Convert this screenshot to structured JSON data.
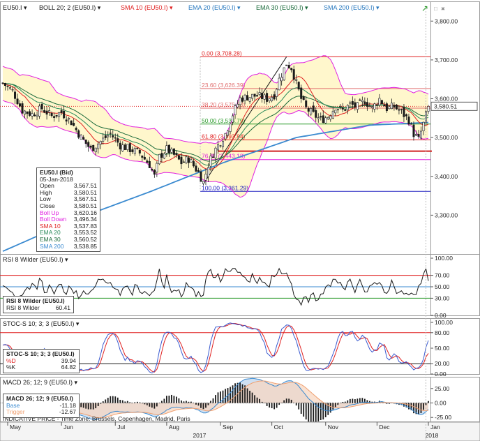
{
  "colors": {
    "candle_up": "#1a1a1a",
    "candle_down": "#1a1a1a",
    "boll": "#e01ee0",
    "boll_fill": "#fff7cc",
    "sma10": "#e02020",
    "ema20": "#2a8a5a",
    "ema30": "#1a6a3a",
    "sma200": "#3a8ad0",
    "fib_red": "#e02020",
    "fib_blue": "#2020c0",
    "rsi": "#1a1a1a",
    "stoch_d": "#e02020",
    "stoch_k": "#3a5ad0",
    "macd_base": "#3a8ad0",
    "macd_trigger": "#f0a070"
  },
  "main_header": {
    "items": [
      {
        "text": "EU50.I",
        "color": "#1a1a1a"
      },
      {
        "text": "BOLL 20; 2 (EU50.I)",
        "color": "#1a1a1a"
      },
      {
        "text": "SMA 10 (EU50.I)",
        "color": "#e02020"
      },
      {
        "text": "EMA 20 (EU50.I)",
        "color": "#2a7ac0"
      },
      {
        "text": "EMA 30 (EU50.I)",
        "color": "#1a6a3a"
      },
      {
        "text": "SMA 200 (EU50.I)",
        "color": "#2a7ac0"
      }
    ]
  },
  "rsi_header": "RSI 8 Wilder (EU50.I)",
  "stoch_header": "STOC-S 10; 3; 3 (EU50.I)",
  "macd_header": "MACD 26; 12; 9 (EU50.I)",
  "footer_text": "INDICATIVE PRICE - Time Zone: Brussels, Copenhagen, Madrid, Paris",
  "last_price_label": "3,580.51",
  "x_labels": [
    {
      "text": "May",
      "i": 2
    },
    {
      "text": "Jun",
      "i": 24
    },
    {
      "text": "Jul",
      "i": 46
    },
    {
      "text": "Aug",
      "i": 67
    },
    {
      "text": "Sep",
      "i": 89
    },
    {
      "text": "Oct",
      "i": 110
    },
    {
      "text": "Nov",
      "i": 132
    },
    {
      "text": "Dec",
      "i": 153
    },
    {
      "text": "Jan",
      "i": 174
    }
  ],
  "year_labels": [
    {
      "text": "2017",
      "i": 80
    },
    {
      "text": "2018",
      "i": 175
    }
  ],
  "info_main": {
    "title": "EU50.I (Bid)",
    "date": "05-Jan-2018",
    "rows": [
      {
        "label": "Open",
        "value": "3,567.51",
        "color": "#1a1a1a"
      },
      {
        "label": "High",
        "value": "3,580.51",
        "color": "#1a1a1a"
      },
      {
        "label": "Low",
        "value": "3,567.51",
        "color": "#1a1a1a"
      },
      {
        "label": "Close",
        "value": "3,580.51",
        "color": "#1a1a1a"
      },
      {
        "label": "Boll Up",
        "value": "3,620.16",
        "color": "#e01ee0"
      },
      {
        "label": "Boll Down",
        "value": "3,496.34",
        "color": "#e01ee0"
      },
      {
        "label": "SMA 10",
        "value": "3,537.83",
        "color": "#e02020"
      },
      {
        "label": "EMA 20",
        "value": "3,553.52",
        "color": "#2a8a5a"
      },
      {
        "label": "EMA 30",
        "value": "3,560.52",
        "color": "#1a6a3a"
      },
      {
        "label": "SMA 200",
        "value": "3,538.85",
        "color": "#3a8ad0"
      }
    ]
  },
  "info_rsi": {
    "title": "RSI 8 Wilder (EU50.I)",
    "rows": [
      {
        "label": "RSI 8 Wilder",
        "value": "60.41",
        "color": "#1a1a1a"
      }
    ]
  },
  "info_stoch": {
    "title": "STOC-S 10; 3; 3 (EU50.I)",
    "rows": [
      {
        "label": "%D",
        "value": "39.94",
        "color": "#e02020"
      },
      {
        "label": "%K",
        "value": "64.82",
        "color": "#1a1a1a"
      }
    ]
  },
  "info_macd": {
    "title": "MACD 26; 12; 9 (EU50.I)",
    "rows": [
      {
        "label": "Base",
        "value": "-11.18",
        "color": "#3a8ad0"
      },
      {
        "label": "Trigger",
        "value": "-12.67",
        "color": "#f0a070"
      }
    ]
  },
  "chart_data": [
    {
      "type": "candlestick",
      "title": "",
      "ylim": [
        3200,
        3840
      ],
      "y_ticks": [
        {
          "value": 3300,
          "label": "3,300.00"
        },
        {
          "value": 3400,
          "label": "3,400.00"
        },
        {
          "value": 3500,
          "label": "3,500.00"
        },
        {
          "value": 3600,
          "label": "3,600.00"
        },
        {
          "value": 3700,
          "label": "3,700.00"
        },
        {
          "value": 3800,
          "label": "3,800.00"
        }
      ],
      "fibonacci": [
        {
          "label": "0.00 (3,708.28)",
          "value": 3708.28,
          "color": "#e02020"
        },
        {
          "label": "23.60 (3,626.39)",
          "value": 3626.39,
          "color": "#e07070"
        },
        {
          "label": "38.20 (3,575.73)",
          "value": 3575.73,
          "color": "#e07070"
        },
        {
          "label": "50.00 (3,534.79)",
          "value": 3534.79,
          "color": "#2a9a2a"
        },
        {
          "label": "61.80 (3,493.84)",
          "value": 3493.84,
          "color": "#e02020"
        },
        {
          "label": "76.40 (3,443.18)",
          "value": 3443.18,
          "color": "#e01ee0"
        },
        {
          "label": "100.00 (3,361.29)",
          "value": 3361.29,
          "color": "#2020c0"
        }
      ],
      "support_line": {
        "value": 3465,
        "from_i": 88
      },
      "trendline": {
        "from_i": 82,
        "from_v": 3380,
        "to_i": 116,
        "to_v": 3708
      },
      "anchors": [
        {
          "i": 0,
          "v": 3640
        },
        {
          "i": 4,
          "v": 3620
        },
        {
          "i": 8,
          "v": 3570
        },
        {
          "i": 12,
          "v": 3560
        },
        {
          "i": 16,
          "v": 3575
        },
        {
          "i": 20,
          "v": 3555
        },
        {
          "i": 24,
          "v": 3565
        },
        {
          "i": 28,
          "v": 3540
        },
        {
          "i": 32,
          "v": 3500
        },
        {
          "i": 36,
          "v": 3470
        },
        {
          "i": 40,
          "v": 3490
        },
        {
          "i": 44,
          "v": 3510
        },
        {
          "i": 48,
          "v": 3480
        },
        {
          "i": 52,
          "v": 3470
        },
        {
          "i": 56,
          "v": 3460
        },
        {
          "i": 60,
          "v": 3430
        },
        {
          "i": 62,
          "v": 3400
        },
        {
          "i": 64,
          "v": 3450
        },
        {
          "i": 67,
          "v": 3470
        },
        {
          "i": 70,
          "v": 3455
        },
        {
          "i": 73,
          "v": 3435
        },
        {
          "i": 76,
          "v": 3445
        },
        {
          "i": 80,
          "v": 3410
        },
        {
          "i": 82,
          "v": 3385
        },
        {
          "i": 84,
          "v": 3430
        },
        {
          "i": 86,
          "v": 3460
        },
        {
          "i": 88,
          "v": 3480
        },
        {
          "i": 91,
          "v": 3510
        },
        {
          "i": 94,
          "v": 3560
        },
        {
          "i": 97,
          "v": 3600
        },
        {
          "i": 100,
          "v": 3605
        },
        {
          "i": 104,
          "v": 3608
        },
        {
          "i": 108,
          "v": 3600
        },
        {
          "i": 111,
          "v": 3610
        },
        {
          "i": 113,
          "v": 3650
        },
        {
          "i": 116,
          "v": 3690
        },
        {
          "i": 118,
          "v": 3680
        },
        {
          "i": 120,
          "v": 3640
        },
        {
          "i": 122,
          "v": 3600
        },
        {
          "i": 124,
          "v": 3575
        },
        {
          "i": 127,
          "v": 3560
        },
        {
          "i": 130,
          "v": 3545
        },
        {
          "i": 133,
          "v": 3555
        },
        {
          "i": 136,
          "v": 3580
        },
        {
          "i": 139,
          "v": 3570
        },
        {
          "i": 142,
          "v": 3585
        },
        {
          "i": 145,
          "v": 3580
        },
        {
          "i": 148,
          "v": 3595
        },
        {
          "i": 151,
          "v": 3575
        },
        {
          "i": 154,
          "v": 3600
        },
        {
          "i": 157,
          "v": 3575
        },
        {
          "i": 160,
          "v": 3580
        },
        {
          "i": 163,
          "v": 3565
        },
        {
          "i": 166,
          "v": 3545
        },
        {
          "i": 168,
          "v": 3510
        },
        {
          "i": 170,
          "v": 3495
        },
        {
          "i": 172,
          "v": 3535
        },
        {
          "i": 174,
          "v": 3580.51
        }
      ],
      "sma200": [
        {
          "i": 0,
          "v": 3207
        },
        {
          "i": 30,
          "v": 3290
        },
        {
          "i": 60,
          "v": 3360
        },
        {
          "i": 90,
          "v": 3435
        },
        {
          "i": 120,
          "v": 3500
        },
        {
          "i": 150,
          "v": 3532
        },
        {
          "i": 174,
          "v": 3538.85
        }
      ]
    },
    {
      "type": "line",
      "name_ref": "rsi",
      "ylim": [
        0,
        100
      ],
      "y_ticks": [
        {
          "value": 0,
          "label": "0.00"
        },
        {
          "value": 30,
          "label": "30.00"
        },
        {
          "value": 50,
          "label": "50.00"
        },
        {
          "value": 70,
          "label": "70.00"
        },
        {
          "value": 100,
          "label": "100.00"
        }
      ],
      "levels": [
        {
          "value": 70,
          "color": "#e02020"
        },
        {
          "value": 50,
          "color": "#3a8ad0"
        },
        {
          "value": 30,
          "color": "#2a9a2a"
        }
      ],
      "last": 60.41
    },
    {
      "type": "line",
      "name_ref": "stochastic",
      "ylim": [
        0,
        100
      ],
      "y_ticks": [
        {
          "value": 0,
          "label": "0.00"
        },
        {
          "value": 20,
          "label": "20.00"
        },
        {
          "value": 50,
          "label": "50.00"
        },
        {
          "value": 80,
          "label": "80.00"
        },
        {
          "value": 100,
          "label": "100.00"
        }
      ],
      "levels": [
        {
          "value": 80,
          "color": "#e02020"
        },
        {
          "value": 20,
          "color": "#1a1a1a"
        }
      ],
      "last_d": 39.94,
      "last_k": 64.82
    },
    {
      "type": "line",
      "name_ref": "macd",
      "ylim": [
        -32,
        38
      ],
      "y_ticks": [
        {
          "value": 25,
          "label": "25.00"
        },
        {
          "value": 0,
          "label": "0.00"
        },
        {
          "value": -25,
          "label": "-25.00"
        }
      ],
      "levels": [
        {
          "value": 0,
          "color": "#888888"
        }
      ],
      "last_base": -11.18,
      "last_trigger": -12.67
    }
  ]
}
